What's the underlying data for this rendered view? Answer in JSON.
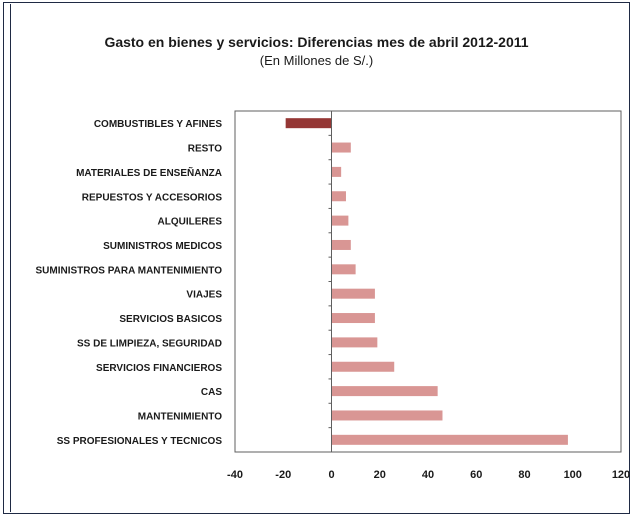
{
  "chart_data": {
    "type": "bar",
    "orientation": "horizontal",
    "title": "Gasto en bienes y servicios:  Diferencias mes de abril 2012-2011",
    "subtitle": "(En Millones de S/.)",
    "categories": [
      "COMBUSTIBLES Y AFINES",
      "RESTO",
      "MATERIALES DE ENSEÑANZA",
      "REPUESTOS Y ACCESORIOS",
      "ALQUILERES",
      "SUMINISTROS MEDICOS",
      "SUMINISTROS PARA MANTENIMIENTO",
      "VIAJES",
      "SERVICIOS BASICOS",
      "SS DE LIMPIEZA, SEGURIDAD",
      "SERVICIOS FINANCIEROS",
      "CAS",
      "MANTENIMIENTO",
      "SS PROFESIONALES Y TECNICOS"
    ],
    "values": [
      -19,
      8,
      4,
      6,
      7,
      8,
      10,
      18,
      18,
      19,
      26,
      44,
      46,
      98
    ],
    "xlim": [
      -40,
      120
    ],
    "xticks": [
      "-40",
      "-20",
      "0",
      "20",
      "40",
      "60",
      "80",
      "100",
      "120"
    ],
    "grid": false,
    "colors": {
      "negative": "#953735",
      "positive": "#d99694"
    }
  }
}
